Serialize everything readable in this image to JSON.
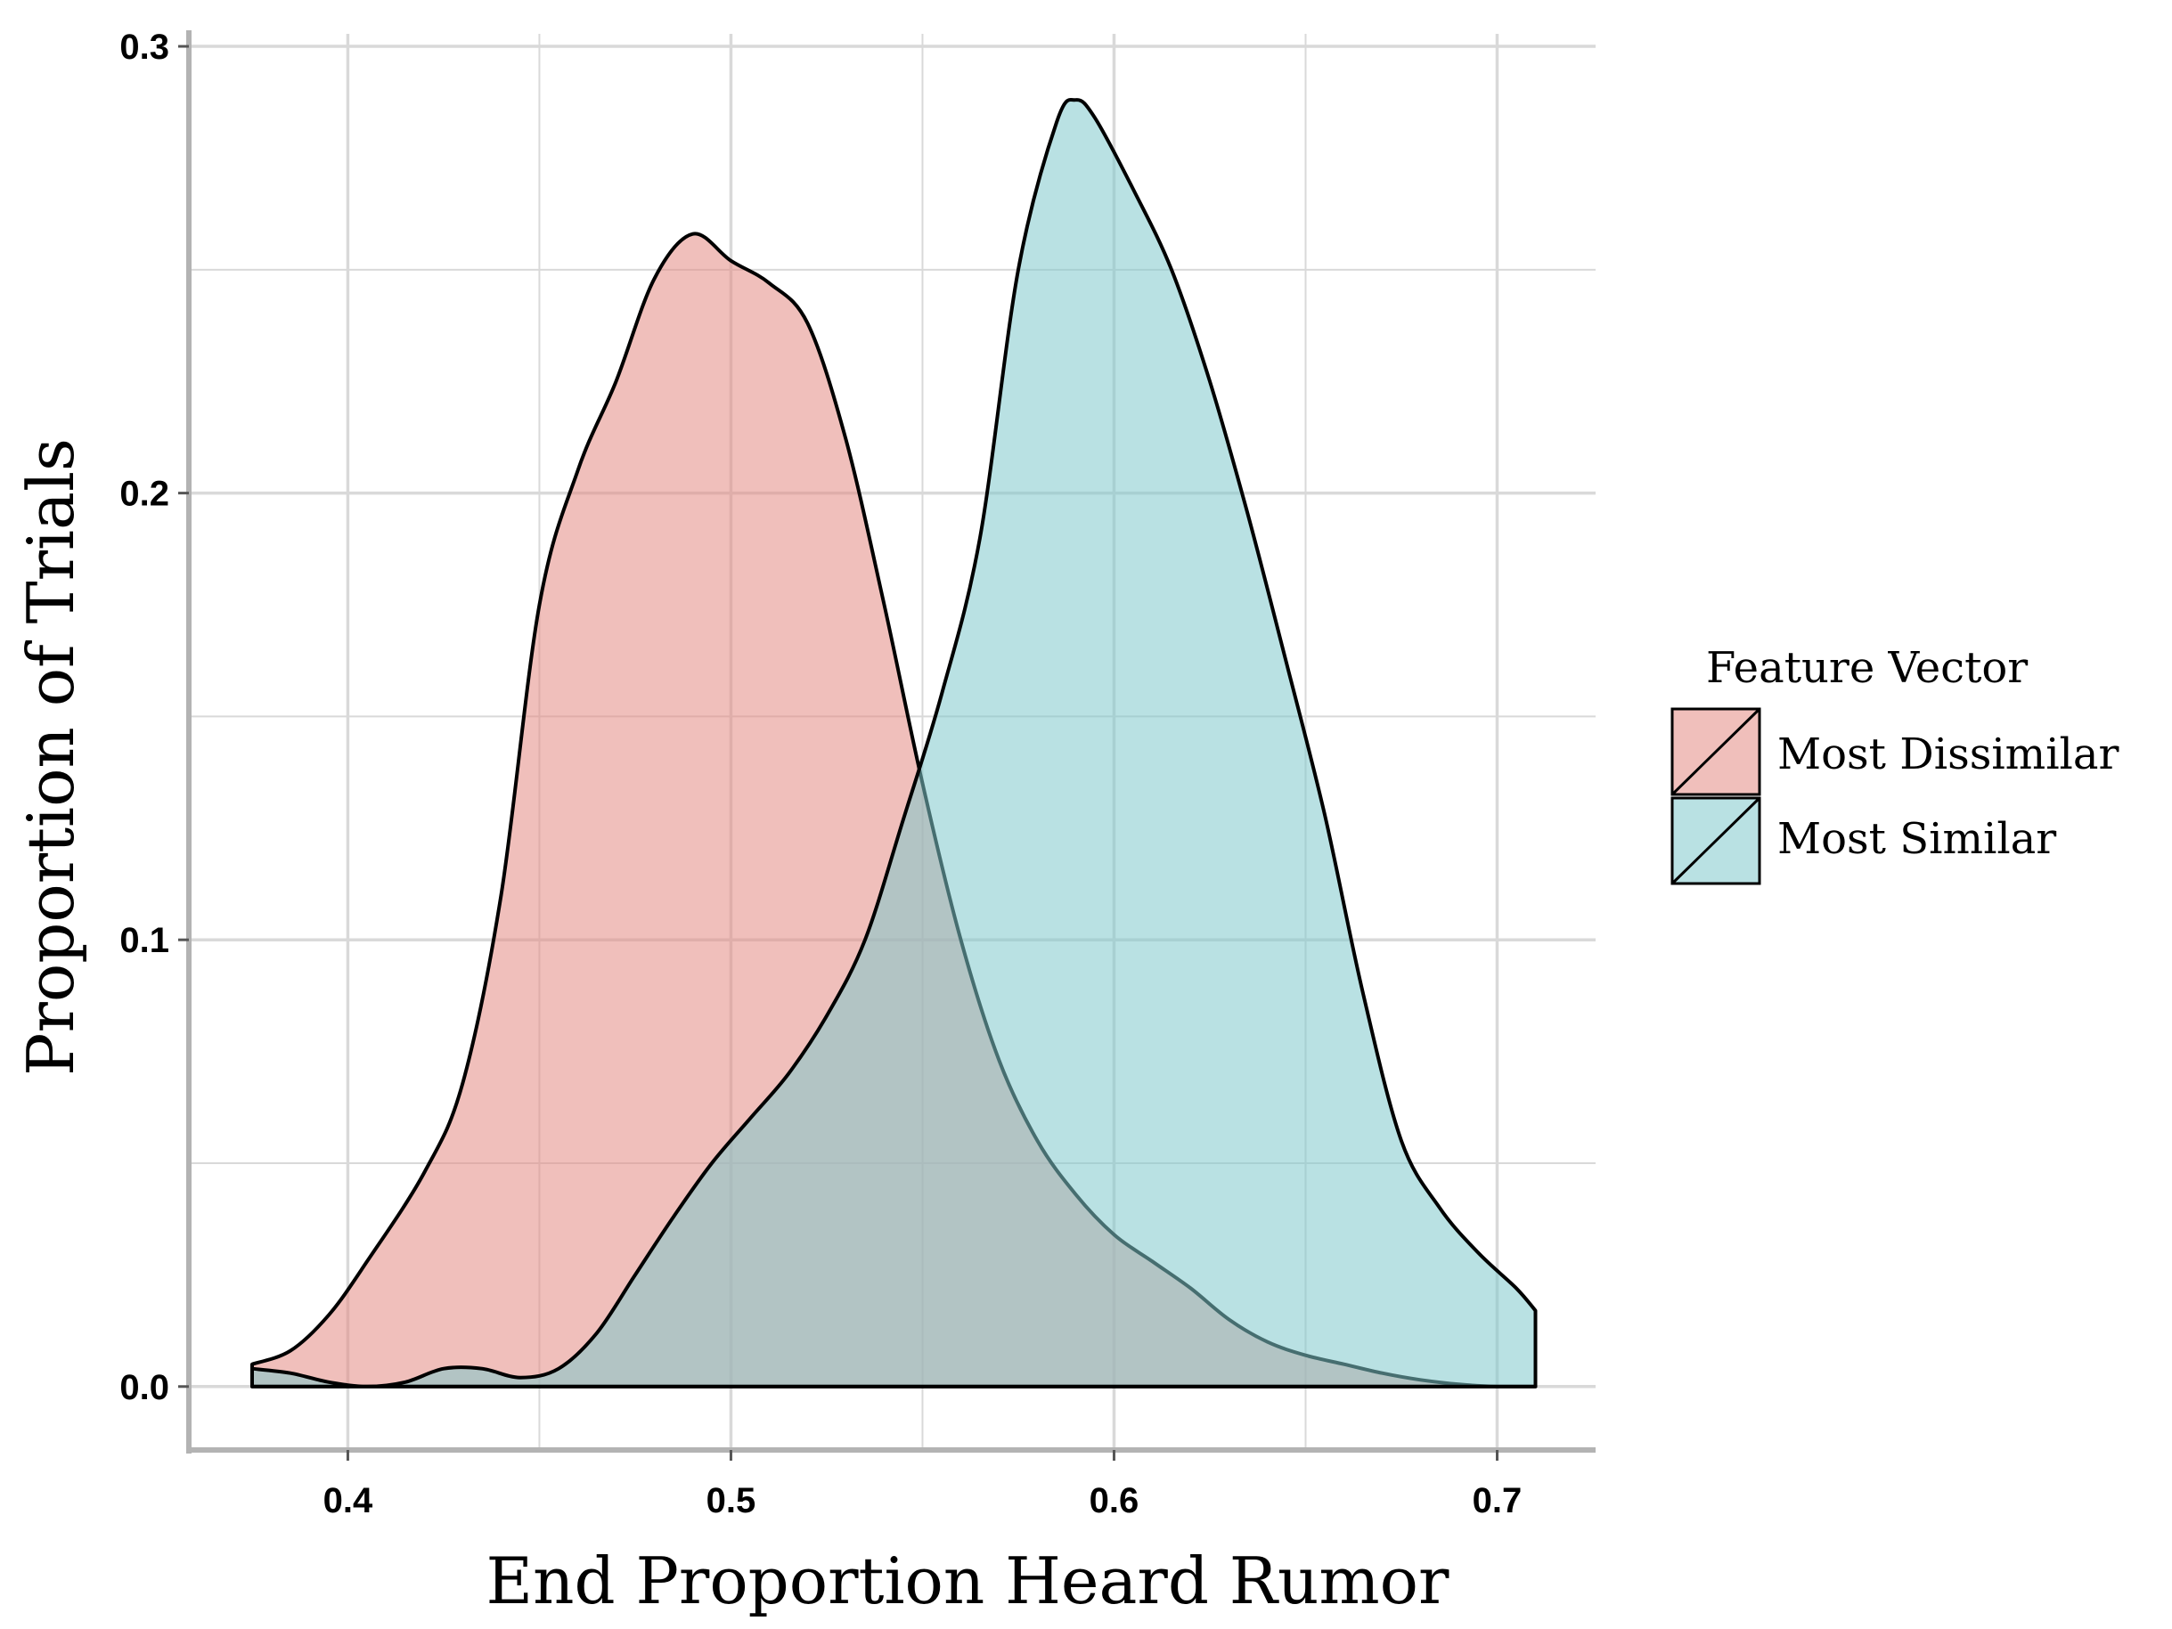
{
  "colors": {
    "background": "#ffffff",
    "grid": "#d9d9d9",
    "axis": "#b3b3b3",
    "series_dissimilar": "#e48a83",
    "series_similar": "#7fc8cc",
    "outline": "#000000"
  },
  "chart_data": {
    "type": "area",
    "subtype": "density",
    "title": "",
    "xlabel": "End Proportion Heard Rumor",
    "ylabel": "Proportion of Trials",
    "xlim": [
      0.3585,
      0.7257
    ],
    "ylim": [
      -0.0142,
      0.3028
    ],
    "x_ticks": [
      0.4,
      0.5,
      0.6,
      0.7
    ],
    "x_tick_labels": [
      "0.4",
      "0.5",
      "0.6",
      "0.7"
    ],
    "y_ticks": [
      0.0,
      0.1,
      0.2,
      0.3
    ],
    "y_tick_labels": [
      "0.0",
      "0.1",
      "0.2",
      "0.3"
    ],
    "x_minor_ticks": [
      0.45,
      0.55,
      0.65
    ],
    "y_minor_ticks": [
      0.05,
      0.15,
      0.25
    ],
    "grid": true,
    "fill_opacity": 0.55,
    "legend": {
      "title": "Feature Vector",
      "position": "right",
      "entries": [
        "Most Dissimilar",
        "Most Similar"
      ]
    },
    "series": [
      {
        "name": "Most Dissimilar",
        "color": "#e48a83",
        "x": [
          0.375,
          0.385,
          0.395,
          0.405,
          0.42,
          0.43,
          0.44,
          0.45,
          0.46,
          0.47,
          0.48,
          0.49,
          0.5,
          0.51,
          0.52,
          0.53,
          0.54,
          0.55,
          0.56,
          0.57,
          0.58,
          0.59,
          0.6,
          0.61,
          0.62,
          0.63,
          0.64,
          0.65,
          0.66,
          0.67,
          0.68,
          0.69,
          0.7,
          0.71
        ],
        "y": [
          0.005,
          0.008,
          0.016,
          0.028,
          0.048,
          0.068,
          0.11,
          0.175,
          0.205,
          0.225,
          0.248,
          0.258,
          0.252,
          0.247,
          0.238,
          0.212,
          0.175,
          0.135,
          0.1,
          0.073,
          0.055,
          0.043,
          0.034,
          0.028,
          0.022,
          0.015,
          0.01,
          0.007,
          0.005,
          0.003,
          0.0015,
          0.0005,
          0.0,
          0.0
        ]
      },
      {
        "name": "Most Similar",
        "color": "#7fc8cc",
        "x": [
          0.375,
          0.385,
          0.395,
          0.405,
          0.415,
          0.425,
          0.435,
          0.445,
          0.455,
          0.465,
          0.475,
          0.485,
          0.495,
          0.505,
          0.515,
          0.525,
          0.535,
          0.545,
          0.555,
          0.565,
          0.575,
          0.585,
          0.59,
          0.595,
          0.605,
          0.615,
          0.625,
          0.635,
          0.645,
          0.655,
          0.665,
          0.675,
          0.685,
          0.695,
          0.705,
          0.71
        ],
        "y": [
          0.004,
          0.003,
          0.001,
          0.0,
          0.001,
          0.004,
          0.004,
          0.002,
          0.004,
          0.012,
          0.025,
          0.038,
          0.05,
          0.06,
          0.07,
          0.083,
          0.1,
          0.127,
          0.155,
          0.19,
          0.25,
          0.283,
          0.288,
          0.284,
          0.268,
          0.25,
          0.225,
          0.195,
          0.162,
          0.128,
          0.088,
          0.055,
          0.04,
          0.03,
          0.022,
          0.017
        ]
      }
    ]
  }
}
